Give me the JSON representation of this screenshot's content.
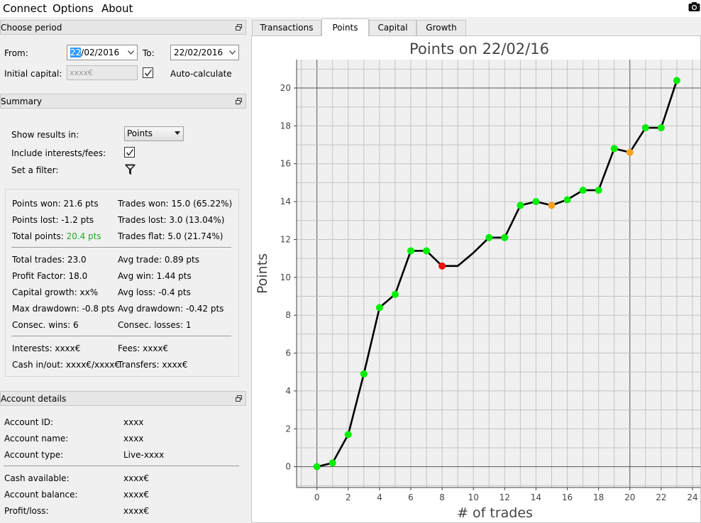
{
  "menu": {
    "items": [
      "Connect",
      "Options",
      "About"
    ]
  },
  "period": {
    "header": "Choose period",
    "from_label": "From:",
    "from_day_selected": "22",
    "from_rest": "/02/2016",
    "to_label": "To:",
    "to_value": "22/02/2016",
    "initial_capital_label": "Initial capital:",
    "initial_capital_value": "xxxx€",
    "auto_calc_label": "Auto-calculate"
  },
  "summary": {
    "header": "Summary",
    "show_results_label": "Show results in:",
    "show_results_value": "Points",
    "include_interests_label": "Include interests/fees:",
    "filter_label": "Set a filter:",
    "stats": {
      "points_won": "Points won: 21.6 pts",
      "points_lost": "Points lost: -1.2 pts",
      "total_points_label": "Total points: ",
      "total_points_value": "20.4 pts",
      "trades_won": "Trades won: 15.0 (65.22%)",
      "trades_lost": "Trades lost: 3.0 (13.04%)",
      "trades_flat": "Trades flat: 5.0 (21.74%)",
      "total_trades": "Total trades: 23.0",
      "profit_factor": "Profit Factor: 18.0",
      "capital_growth": "Capital growth: xx%",
      "max_drawdown": "Max drawdown: -0.8 pts",
      "consec_wins": "Consec. wins: 6",
      "avg_trade": "Avg trade: 0.89 pts",
      "avg_win": "Avg win: 1.44 pts",
      "avg_loss": "Avg loss: -0.4 pts",
      "avg_drawdown": "Avg drawdown: -0.42 pts",
      "consec_losses": "Consec. losses: 1",
      "interests": "Interests: xxxx€",
      "fees": "Fees: xxxx€",
      "cash_in_out": "Cash in/out: xxxx€/xxxx€",
      "transfers": "Transfers: xxxx€"
    }
  },
  "account": {
    "header": "Account details",
    "id_label": "Account ID:",
    "id_value": "xxxx",
    "name_label": "Account name:",
    "name_value": "xxxx",
    "type_label": "Account type:",
    "type_value": "Live-xxxx",
    "cash_label": "Cash available:",
    "cash_value": "xxxx€",
    "balance_label": "Account balance:",
    "balance_value": "xxxx€",
    "pl_label": "Profit/loss:",
    "pl_value": "xxxx€"
  },
  "tabs": {
    "transactions": "Transactions",
    "points": "Points",
    "capital": "Capital",
    "growth": "Growth"
  },
  "icons": {
    "camera": "camera-icon",
    "float": "float-dock-icon",
    "filter": "funnel-icon",
    "dropdown": "chevron-down-icon",
    "check": "check-icon"
  },
  "colors": {
    "win": "#00ee00",
    "loss": "#ee1111",
    "flat": "#f5a020",
    "line": "#000000",
    "accent_text": "#22aa22",
    "selection": "#3399ff"
  },
  "chart_data": {
    "type": "line",
    "title": "Points on 22/02/16",
    "xlabel": "# of trades",
    "ylabel": "Points",
    "xlim": [
      -1.3,
      24.5
    ],
    "ylim": [
      -1.1,
      21.5
    ],
    "xticks": [
      0,
      2,
      4,
      6,
      8,
      10,
      12,
      14,
      16,
      18,
      20,
      22,
      24
    ],
    "yticks": [
      0,
      2,
      4,
      6,
      8,
      10,
      12,
      14,
      16,
      18,
      20
    ],
    "grid": true,
    "highlight_lines": {
      "x": [
        0,
        20
      ],
      "y": [
        0,
        20
      ]
    },
    "points": [
      {
        "x": 0,
        "y": 0.0,
        "kind": "win"
      },
      {
        "x": 1,
        "y": 0.2,
        "kind": "win"
      },
      {
        "x": 2,
        "y": 1.7,
        "kind": "win"
      },
      {
        "x": 3,
        "y": 4.9,
        "kind": "win"
      },
      {
        "x": 4,
        "y": 8.4,
        "kind": "win"
      },
      {
        "x": 5,
        "y": 9.1,
        "kind": "win"
      },
      {
        "x": 6,
        "y": 11.4,
        "kind": "win"
      },
      {
        "x": 7,
        "y": 11.4,
        "kind": "win"
      },
      {
        "x": 8,
        "y": 10.6,
        "kind": "loss"
      },
      {
        "x": 9,
        "y": 10.6,
        "kind": "none"
      },
      {
        "x": 10,
        "y": 11.3,
        "kind": "none"
      },
      {
        "x": 11,
        "y": 12.1,
        "kind": "win"
      },
      {
        "x": 12,
        "y": 12.1,
        "kind": "win"
      },
      {
        "x": 13,
        "y": 13.8,
        "kind": "win"
      },
      {
        "x": 14,
        "y": 14.0,
        "kind": "win"
      },
      {
        "x": 15,
        "y": 13.8,
        "kind": "flat"
      },
      {
        "x": 16,
        "y": 14.1,
        "kind": "win"
      },
      {
        "x": 17,
        "y": 14.6,
        "kind": "win"
      },
      {
        "x": 18,
        "y": 14.6,
        "kind": "win"
      },
      {
        "x": 19,
        "y": 16.8,
        "kind": "win"
      },
      {
        "x": 20,
        "y": 16.6,
        "kind": "flat"
      },
      {
        "x": 21,
        "y": 17.9,
        "kind": "win"
      },
      {
        "x": 22,
        "y": 17.9,
        "kind": "win"
      },
      {
        "x": 23,
        "y": 20.4,
        "kind": "win"
      }
    ]
  }
}
